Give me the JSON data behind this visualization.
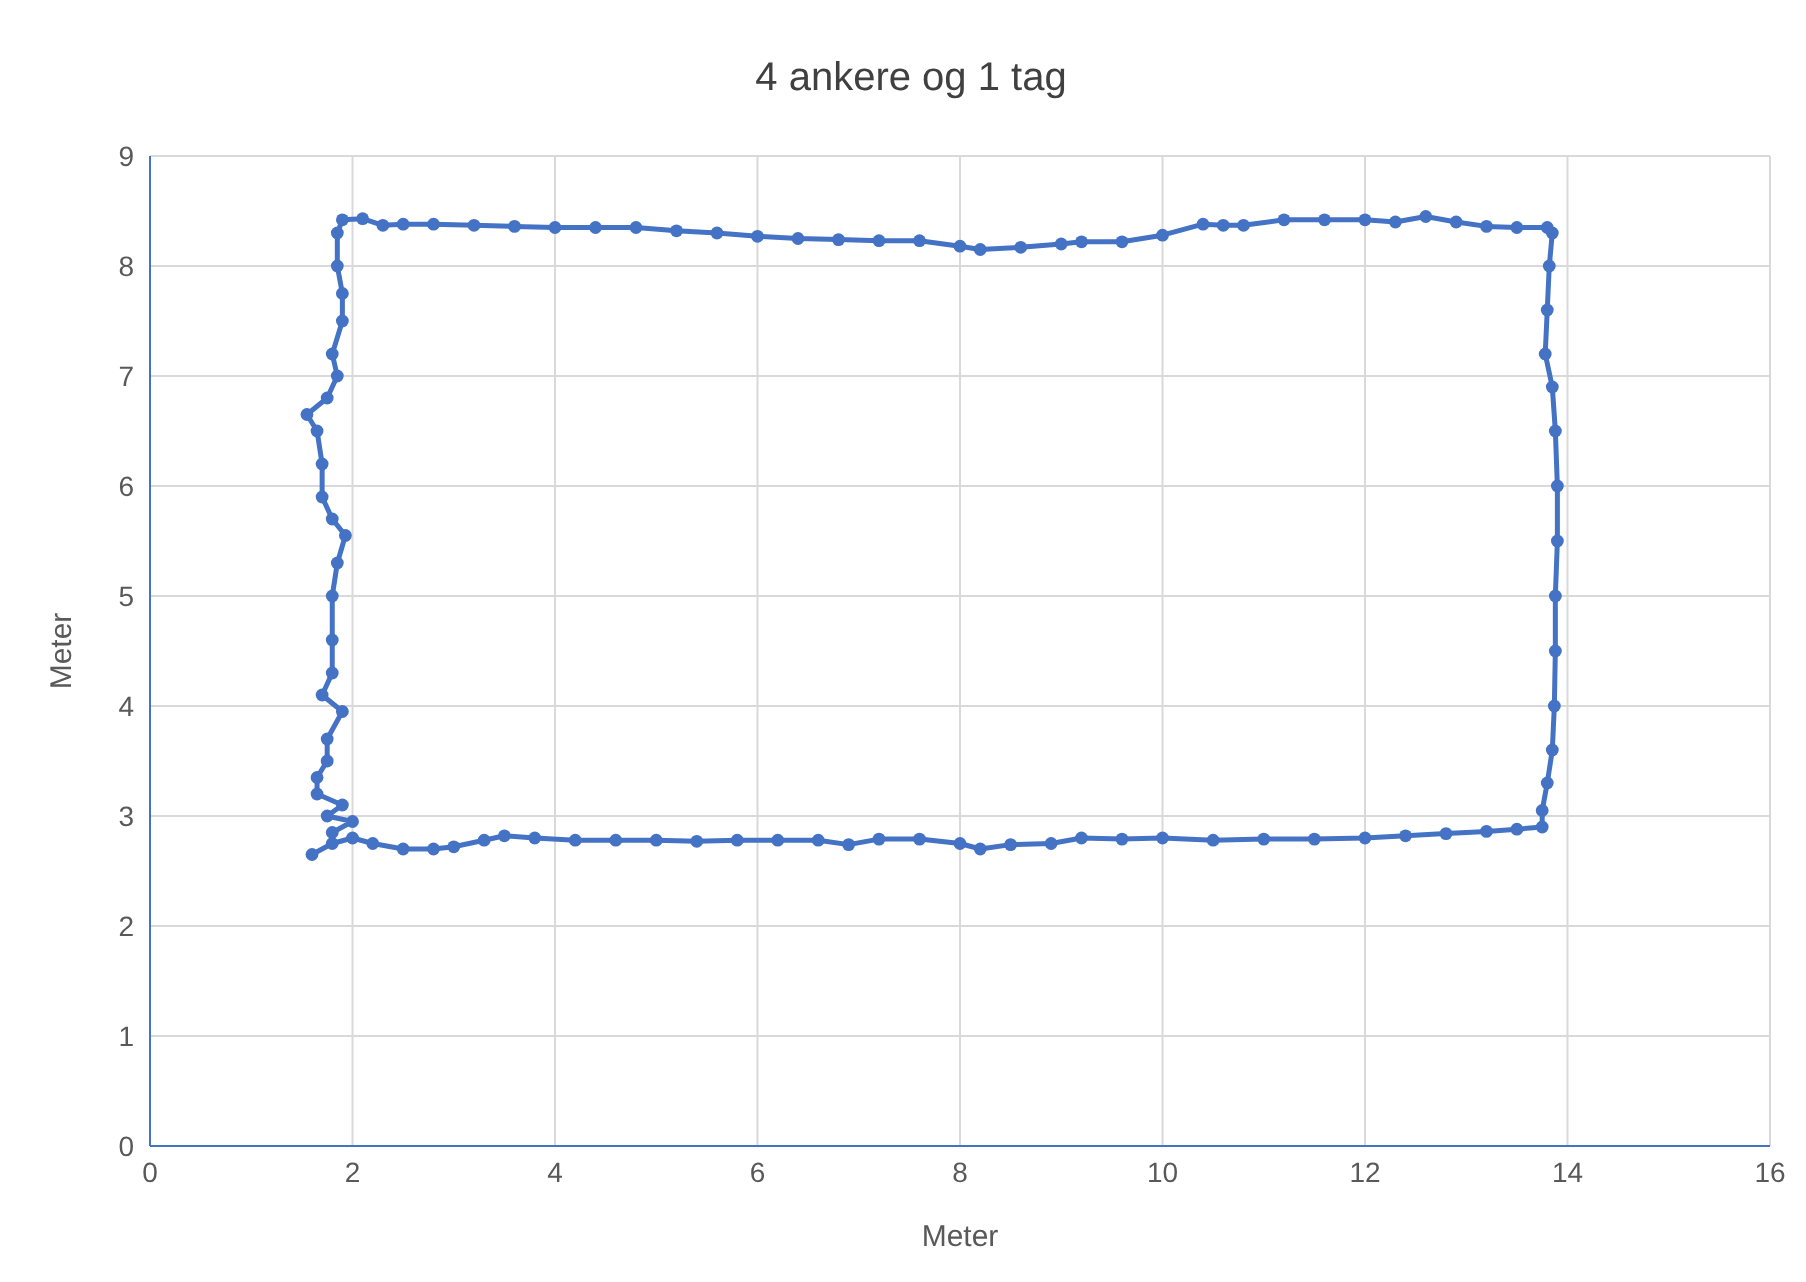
{
  "chart_data": {
    "type": "line",
    "title": "4 ankere og 1 tag",
    "xlabel": "Meter",
    "ylabel": "Meter",
    "marker": "circle",
    "line_style": "solid",
    "grid": true,
    "legend": false,
    "xlim": [
      0,
      16
    ],
    "xticks": [
      0,
      2,
      4,
      6,
      8,
      10,
      12,
      14,
      16
    ],
    "ylim": [
      0,
      9
    ],
    "yticks": [
      0,
      1,
      2,
      3,
      4,
      5,
      6,
      7,
      8,
      9
    ],
    "series": [
      {
        "color": "#4472c4",
        "x": [
          1.6,
          1.8,
          2.0,
          2.2,
          2.5,
          2.8,
          3.0,
          3.3,
          3.5,
          3.8,
          4.2,
          4.6,
          5.0,
          5.4,
          5.8,
          6.2,
          6.6,
          6.9,
          7.2,
          7.6,
          8.0,
          8.2,
          8.5,
          8.9,
          9.2,
          9.6,
          10.0,
          10.5,
          11.0,
          11.5,
          12.0,
          12.4,
          12.8,
          13.2,
          13.5,
          13.75,
          13.75,
          13.8,
          13.85,
          13.87,
          13.88,
          13.88,
          13.9,
          13.9,
          13.88,
          13.85,
          13.78,
          13.8,
          13.82,
          13.85,
          13.8,
          13.5,
          13.2,
          12.9,
          12.6,
          12.3,
          12.0,
          11.6,
          11.2,
          10.8,
          10.6,
          10.4,
          10.0,
          9.6,
          9.2,
          9.0,
          8.6,
          8.2,
          8.0,
          7.6,
          7.2,
          6.8,
          6.4,
          6.0,
          5.6,
          5.2,
          4.8,
          4.4,
          4.0,
          3.6,
          3.2,
          2.8,
          2.5,
          2.3,
          2.1,
          1.9,
          1.85,
          1.85,
          1.9,
          1.9,
          1.8,
          1.85,
          1.75,
          1.55,
          1.65,
          1.7,
          1.7,
          1.8,
          1.93,
          1.85,
          1.8,
          1.8,
          1.8,
          1.7,
          1.9,
          1.75,
          1.75,
          1.65,
          1.65,
          1.9,
          1.75,
          2.0,
          1.8
        ],
        "values": [
          2.65,
          2.75,
          2.8,
          2.75,
          2.7,
          2.7,
          2.72,
          2.78,
          2.82,
          2.8,
          2.78,
          2.78,
          2.78,
          2.77,
          2.78,
          2.78,
          2.78,
          2.74,
          2.79,
          2.79,
          2.75,
          2.7,
          2.74,
          2.75,
          2.8,
          2.79,
          2.8,
          2.78,
          2.79,
          2.79,
          2.8,
          2.82,
          2.84,
          2.86,
          2.88,
          2.9,
          3.05,
          3.3,
          3.6,
          4.0,
          4.5,
          5.0,
          5.5,
          6.0,
          6.5,
          6.9,
          7.2,
          7.6,
          8.0,
          8.3,
          8.35,
          8.35,
          8.36,
          8.4,
          8.45,
          8.4,
          8.42,
          8.42,
          8.42,
          8.37,
          8.37,
          8.38,
          8.28,
          8.22,
          8.22,
          8.2,
          8.17,
          8.15,
          8.18,
          8.23,
          8.23,
          8.24,
          8.25,
          8.27,
          8.3,
          8.32,
          8.35,
          8.35,
          8.35,
          8.36,
          8.37,
          8.38,
          8.38,
          8.37,
          8.43,
          8.42,
          8.3,
          8.0,
          7.75,
          7.5,
          7.2,
          7.0,
          6.8,
          6.65,
          6.5,
          6.2,
          5.9,
          5.7,
          5.55,
          5.3,
          5.0,
          4.6,
          4.3,
          4.1,
          3.95,
          3.7,
          3.5,
          3.35,
          3.2,
          3.1,
          3.0,
          2.95,
          2.85
        ]
      }
    ]
  }
}
